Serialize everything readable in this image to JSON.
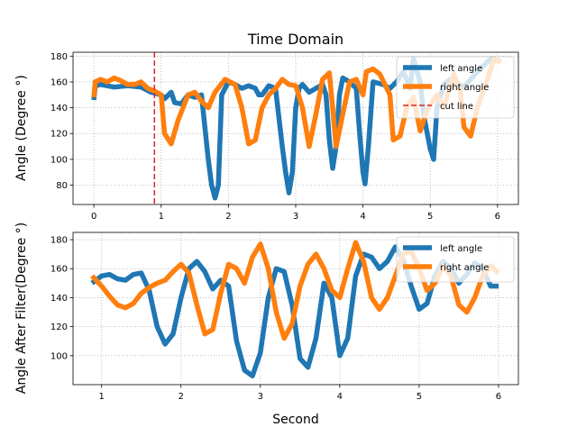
{
  "figure": {
    "title": "Time Domain",
    "xlabel": "Second"
  },
  "colors": {
    "left": "#1f77b4",
    "right": "#ff7f0e",
    "cut": "#d62728"
  },
  "chart_data": [
    {
      "type": "line",
      "ylabel": "Angle (Degree °)",
      "xlim": [
        -0.31,
        6.31
      ],
      "ylim": [
        65,
        183
      ],
      "xticks": [
        0,
        1,
        2,
        3,
        4,
        5,
        6
      ],
      "yticks": [
        80,
        100,
        120,
        140,
        160,
        180
      ],
      "grid": true,
      "legend": "top-right",
      "series": [
        {
          "name": "left angle",
          "color": "#1f77b4",
          "points": [
            [
              0,
              146
            ],
            [
              0.02,
              157
            ],
            [
              0.1,
              158
            ],
            [
              0.3,
              156
            ],
            [
              0.5,
              157
            ],
            [
              0.7,
              156
            ],
            [
              0.85,
              152
            ],
            [
              1.0,
              150
            ],
            [
              1.05,
              147
            ],
            [
              1.15,
              152
            ],
            [
              1.2,
              144
            ],
            [
              1.3,
              143
            ],
            [
              1.4,
              150
            ],
            [
              1.5,
              148
            ],
            [
              1.6,
              150
            ],
            [
              1.7,
              100
            ],
            [
              1.75,
              80
            ],
            [
              1.8,
              70
            ],
            [
              1.85,
              80
            ],
            [
              1.9,
              150
            ],
            [
              2.0,
              160
            ],
            [
              2.1,
              158
            ],
            [
              2.2,
              155
            ],
            [
              2.3,
              157
            ],
            [
              2.4,
              155
            ],
            [
              2.45,
              150
            ],
            [
              2.5,
              150
            ],
            [
              2.6,
              157
            ],
            [
              2.7,
              155
            ],
            [
              2.8,
              110
            ],
            [
              2.85,
              90
            ],
            [
              2.9,
              74
            ],
            [
              2.95,
              90
            ],
            [
              3.0,
              140
            ],
            [
              3.05,
              155
            ],
            [
              3.1,
              158
            ],
            [
              3.2,
              152
            ],
            [
              3.3,
              155
            ],
            [
              3.4,
              158
            ],
            [
              3.45,
              150
            ],
            [
              3.5,
              115
            ],
            [
              3.55,
              93
            ],
            [
              3.6,
              110
            ],
            [
              3.65,
              150
            ],
            [
              3.7,
              163
            ],
            [
              3.8,
              160
            ],
            [
              3.9,
              155
            ],
            [
              3.95,
              120
            ],
            [
              4.0,
              90
            ],
            [
              4.03,
              81
            ],
            [
              4.08,
              110
            ],
            [
              4.15,
              160
            ],
            [
              4.3,
              158
            ],
            [
              4.4,
              155
            ],
            [
              4.5,
              160
            ],
            [
              4.6,
              168
            ],
            [
              4.7,
              155
            ],
            [
              4.75,
              178
            ],
            [
              4.85,
              160
            ],
            [
              4.9,
              135
            ],
            [
              5.0,
              108
            ],
            [
              5.05,
              100
            ],
            [
              5.1,
              140
            ],
            [
              5.2,
              158
            ],
            [
              5.3,
              162
            ],
            [
              5.5,
              156
            ],
            [
              5.7,
              168
            ],
            [
              5.9,
              178
            ],
            [
              6.05,
              176
            ]
          ]
        },
        {
          "name": "right angle",
          "color": "#ff7f0e",
          "points": [
            [
              0,
              148
            ],
            [
              0.02,
              160
            ],
            [
              0.1,
              162
            ],
            [
              0.2,
              160
            ],
            [
              0.3,
              163
            ],
            [
              0.4,
              161
            ],
            [
              0.5,
              158
            ],
            [
              0.6,
              158
            ],
            [
              0.7,
              160
            ],
            [
              0.8,
              155
            ],
            [
              0.9,
              153
            ],
            [
              1.0,
              150
            ],
            [
              1.05,
              120
            ],
            [
              1.15,
              112
            ],
            [
              1.25,
              130
            ],
            [
              1.4,
              150
            ],
            [
              1.5,
              152
            ],
            [
              1.6,
              145
            ],
            [
              1.7,
              140
            ],
            [
              1.8,
              152
            ],
            [
              1.95,
              162
            ],
            [
              2.1,
              158
            ],
            [
              2.2,
              140
            ],
            [
              2.3,
              112
            ],
            [
              2.4,
              115
            ],
            [
              2.5,
              140
            ],
            [
              2.6,
              150
            ],
            [
              2.7,
              155
            ],
            [
              2.8,
              162
            ],
            [
              2.9,
              158
            ],
            [
              3.0,
              157
            ],
            [
              3.1,
              140
            ],
            [
              3.2,
              110
            ],
            [
              3.3,
              135
            ],
            [
              3.4,
              162
            ],
            [
              3.5,
              167
            ],
            [
              3.55,
              140
            ],
            [
              3.6,
              110
            ],
            [
              3.7,
              135
            ],
            [
              3.8,
              160
            ],
            [
              3.9,
              162
            ],
            [
              4.0,
              150
            ],
            [
              4.05,
              168
            ],
            [
              4.15,
              170
            ],
            [
              4.25,
              166
            ],
            [
              4.4,
              150
            ],
            [
              4.45,
              115
            ],
            [
              4.55,
              118
            ],
            [
              4.65,
              140
            ],
            [
              4.75,
              148
            ],
            [
              4.85,
              122
            ],
            [
              4.95,
              138
            ],
            [
              5.1,
              150
            ],
            [
              5.2,
              140
            ],
            [
              5.35,
              166
            ],
            [
              5.45,
              152
            ],
            [
              5.5,
              125
            ],
            [
              5.6,
              118
            ],
            [
              5.7,
              140
            ],
            [
              5.85,
              162
            ],
            [
              5.95,
              178
            ],
            [
              6.05,
              175
            ]
          ]
        }
      ],
      "vline": {
        "name": "cut line",
        "x": 0.9,
        "color": "#d62728"
      }
    },
    {
      "type": "line",
      "ylabel": "Angle After Filter(Degree °)",
      "xlim": [
        0.64,
        6.25
      ],
      "ylim": [
        80,
        185
      ],
      "xticks": [
        1,
        2,
        3,
        4,
        5,
        6
      ],
      "yticks": [
        100,
        120,
        140,
        160,
        180
      ],
      "grid": true,
      "legend": "top-right",
      "series": [
        {
          "name": "left angle",
          "color": "#1f77b4",
          "points": [
            [
              0.88,
              150
            ],
            [
              1.0,
              155
            ],
            [
              1.1,
              156
            ],
            [
              1.2,
              153
            ],
            [
              1.3,
              152
            ],
            [
              1.4,
              156
            ],
            [
              1.5,
              157
            ],
            [
              1.6,
              145
            ],
            [
              1.7,
              120
            ],
            [
              1.8,
              108
            ],
            [
              1.9,
              115
            ],
            [
              2.0,
              140
            ],
            [
              2.1,
              160
            ],
            [
              2.2,
              165
            ],
            [
              2.3,
              158
            ],
            [
              2.4,
              146
            ],
            [
              2.5,
              152
            ],
            [
              2.6,
              148
            ],
            [
              2.7,
              110
            ],
            [
              2.8,
              90
            ],
            [
              2.9,
              86
            ],
            [
              3.0,
              102
            ],
            [
              3.1,
              140
            ],
            [
              3.2,
              160
            ],
            [
              3.3,
              158
            ],
            [
              3.4,
              135
            ],
            [
              3.5,
              98
            ],
            [
              3.6,
              92
            ],
            [
              3.7,
              112
            ],
            [
              3.8,
              150
            ],
            [
              3.9,
              140
            ],
            [
              4.0,
              100
            ],
            [
              4.1,
              112
            ],
            [
              4.2,
              155
            ],
            [
              4.3,
              170
            ],
            [
              4.4,
              168
            ],
            [
              4.5,
              160
            ],
            [
              4.6,
              165
            ],
            [
              4.7,
              175
            ],
            [
              4.8,
              166
            ],
            [
              4.9,
              148
            ],
            [
              5.0,
              132
            ],
            [
              5.1,
              136
            ],
            [
              5.2,
              155
            ],
            [
              5.3,
              165
            ],
            [
              5.4,
              160
            ],
            [
              5.5,
              150
            ],
            [
              5.6,
              156
            ],
            [
              5.7,
              164
            ],
            [
              5.8,
              160
            ],
            [
              5.9,
              148
            ],
            [
              6.0,
              148
            ]
          ]
        },
        {
          "name": "right angle",
          "color": "#ff7f0e",
          "points": [
            [
              0.88,
              155
            ],
            [
              1.0,
              148
            ],
            [
              1.1,
              141
            ],
            [
              1.2,
              135
            ],
            [
              1.3,
              133
            ],
            [
              1.4,
              136
            ],
            [
              1.5,
              143
            ],
            [
              1.6,
              147
            ],
            [
              1.7,
              150
            ],
            [
              1.8,
              152
            ],
            [
              1.9,
              158
            ],
            [
              2.0,
              163
            ],
            [
              2.1,
              157
            ],
            [
              2.2,
              135
            ],
            [
              2.3,
              115
            ],
            [
              2.4,
              118
            ],
            [
              2.5,
              143
            ],
            [
              2.6,
              163
            ],
            [
              2.7,
              160
            ],
            [
              2.8,
              150
            ],
            [
              2.9,
              168
            ],
            [
              3.0,
              177
            ],
            [
              3.1,
              160
            ],
            [
              3.2,
              130
            ],
            [
              3.3,
              112
            ],
            [
              3.4,
              122
            ],
            [
              3.5,
              148
            ],
            [
              3.6,
              163
            ],
            [
              3.7,
              170
            ],
            [
              3.8,
              160
            ],
            [
              3.9,
              145
            ],
            [
              4.0,
              140
            ],
            [
              4.1,
              160
            ],
            [
              4.2,
              178
            ],
            [
              4.3,
              165
            ],
            [
              4.4,
              140
            ],
            [
              4.5,
              132
            ],
            [
              4.6,
              140
            ],
            [
              4.7,
              155
            ],
            [
              4.8,
              170
            ],
            [
              4.9,
              172
            ],
            [
              5.0,
              160
            ],
            [
              5.1,
              145
            ],
            [
              5.2,
              150
            ],
            [
              5.3,
              162
            ],
            [
              5.4,
              155
            ],
            [
              5.5,
              135
            ],
            [
              5.6,
              130
            ],
            [
              5.7,
              140
            ],
            [
              5.8,
              155
            ],
            [
              5.9,
              162
            ],
            [
              6.0,
              157
            ]
          ]
        }
      ],
      "legend_entries_extra": []
    }
  ]
}
